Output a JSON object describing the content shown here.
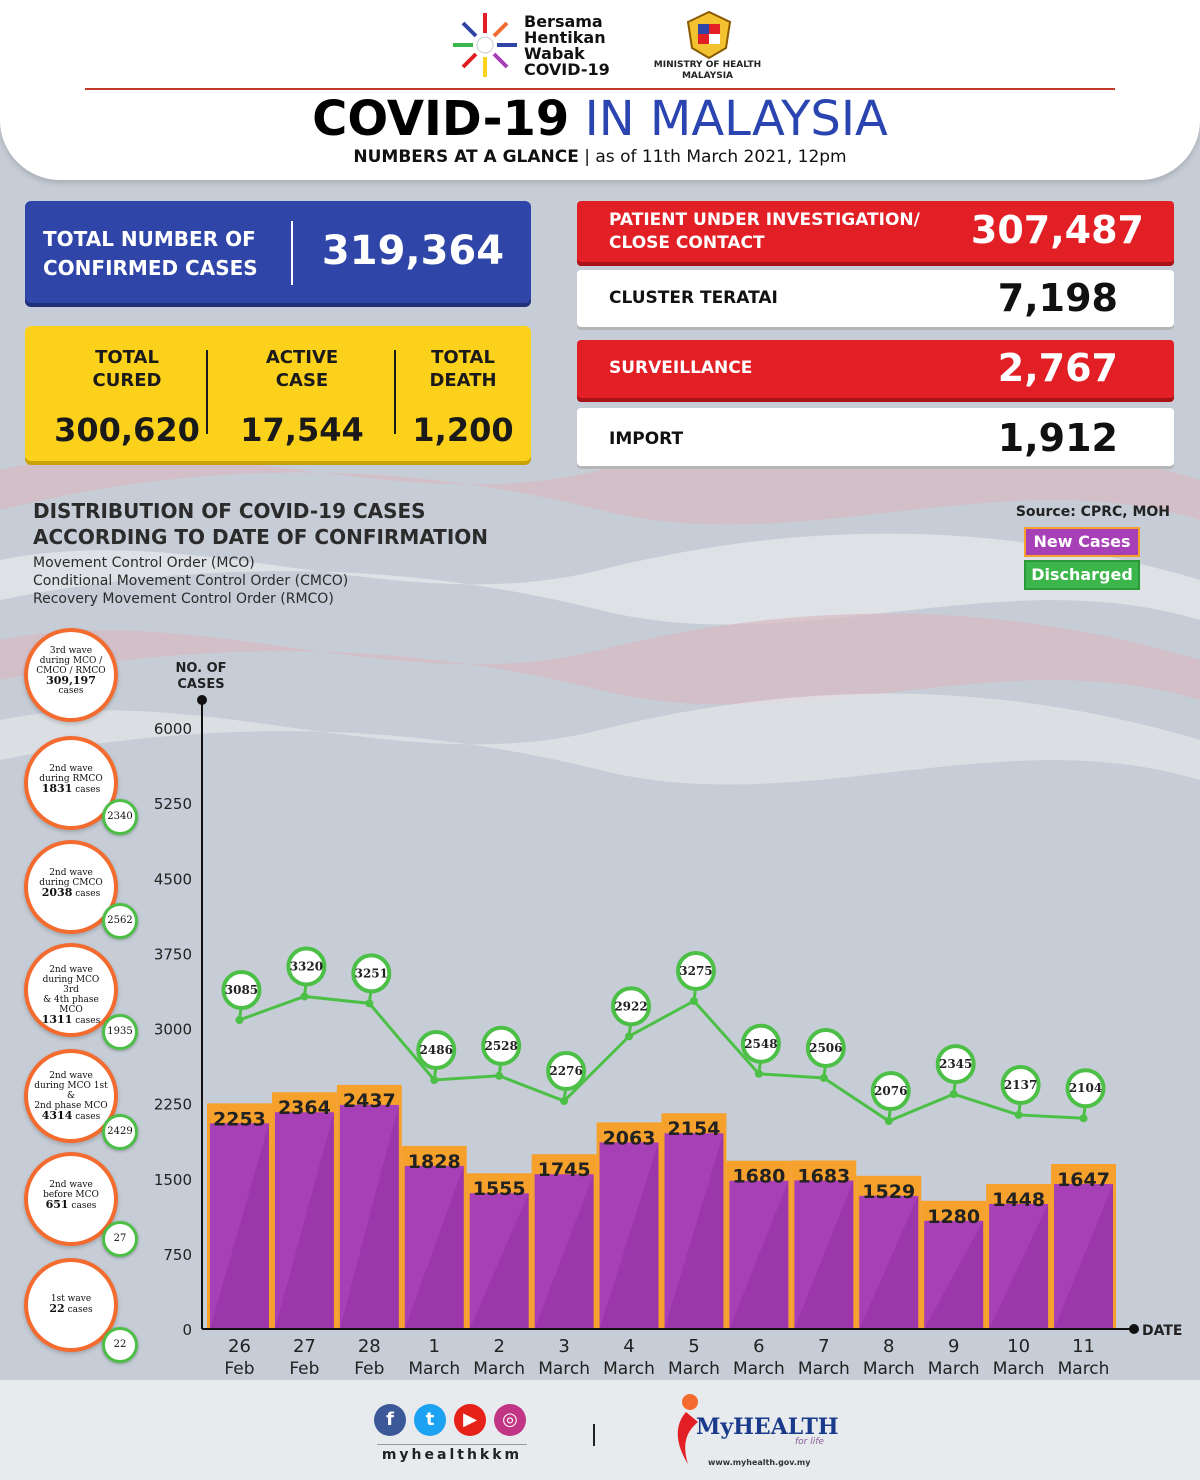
{
  "header": {
    "campaign_lines": [
      "Bersama",
      "Hentikan",
      "Wabak",
      "COVID-19"
    ],
    "ministry_line1": "MINISTRY OF HEALTH",
    "ministry_line2": "MALAYSIA",
    "title_bold": "COVID-19",
    "title_light": "IN MALAYSIA",
    "subtitle_bold": "NUMBERS AT A GLANCE",
    "subtitle_sep": "|",
    "subtitle_date": "as of 11th March 2021, 12pm"
  },
  "confirmed": {
    "label_line1": "TOTAL NUMBER OF",
    "label_line2": "CONFIRMED CASES",
    "value": "319,364"
  },
  "outcomes": [
    {
      "label_line1": "TOTAL",
      "label_line2": "CURED",
      "value": "300,620"
    },
    {
      "label_line1": "ACTIVE",
      "label_line2": "CASE",
      "value": "17,544"
    },
    {
      "label_line1": "TOTAL",
      "label_line2": "DEATH",
      "value": "1,200"
    }
  ],
  "stats": [
    {
      "label_line1": "PATIENT UNDER INVESTIGATION/",
      "label_line2": "CLOSE CONTACT",
      "value": "307,487"
    },
    {
      "label_line1": "CLUSTER TERATAI",
      "label_line2": "",
      "value": "7,198"
    },
    {
      "label_line1": "SURVEILLANCE",
      "label_line2": "",
      "value": "2,767"
    },
    {
      "label_line1": "IMPORT",
      "label_line2": "",
      "value": "1,912"
    }
  ],
  "distribution": {
    "title_line1": "DISTRIBUTION OF COVID-19 CASES",
    "title_line2": "ACCORDING TO DATE OF CONFIRMATION",
    "notes": [
      "Movement Control Order (MCO)",
      "Conditional Movement Control Order (CMCO)",
      "Recovery Movement Control Order (RMCO)"
    ]
  },
  "source": "Source: CPRC, MOH",
  "legend": {
    "new_cases": "New Cases",
    "discharged": "Discharged"
  },
  "waves": [
    {
      "line1": "3rd wave",
      "line2": "during MCO /",
      "line3": "CMCO / RMCO",
      "cases": "309,197",
      "unit": "cases",
      "discharged": ""
    },
    {
      "line1": "2nd wave",
      "line2": "during RMCO",
      "line3": "",
      "cases": "1831",
      "unit": "cases",
      "discharged": "2340"
    },
    {
      "line1": "2nd wave",
      "line2": "during CMCO",
      "line3": "",
      "cases": "2038",
      "unit": "cases",
      "discharged": "2562"
    },
    {
      "line1": "2nd wave",
      "line2": "during MCO 3rd",
      "line3": "& 4th phase MCO",
      "cases": "1311",
      "unit": "cases",
      "discharged": "1935"
    },
    {
      "line1": "2nd wave",
      "line2": "during MCO 1st &",
      "line3": "2nd phase MCO",
      "cases": "4314",
      "unit": "cases",
      "discharged": "2429"
    },
    {
      "line1": "2nd wave",
      "line2": "before MCO",
      "line3": "",
      "cases": "651",
      "unit": "cases",
      "discharged": "27"
    },
    {
      "line1": "1st wave",
      "line2": "",
      "line3": "",
      "cases": "22",
      "unit": "cases",
      "discharged": "22"
    }
  ],
  "chart_data": {
    "type": "bar",
    "ylabel_line1": "NO. OF",
    "ylabel_line2": "CASES",
    "xlabel": "DATE",
    "ylim": [
      0,
      6000
    ],
    "yticks": [
      0,
      750,
      1500,
      2250,
      3000,
      3750,
      4500,
      5250,
      6000
    ],
    "categories": [
      {
        "day": "26",
        "month": "Feb"
      },
      {
        "day": "27",
        "month": "Feb"
      },
      {
        "day": "28",
        "month": "Feb"
      },
      {
        "day": "1",
        "month": "March"
      },
      {
        "day": "2",
        "month": "March"
      },
      {
        "day": "3",
        "month": "March"
      },
      {
        "day": "4",
        "month": "March"
      },
      {
        "day": "5",
        "month": "March"
      },
      {
        "day": "6",
        "month": "March"
      },
      {
        "day": "7",
        "month": "March"
      },
      {
        "day": "8",
        "month": "March"
      },
      {
        "day": "9",
        "month": "March"
      },
      {
        "day": "10",
        "month": "March"
      },
      {
        "day": "11",
        "month": "March"
      }
    ],
    "series": [
      {
        "name": "New Cases",
        "type": "bar",
        "color": "#a73fb7",
        "values": [
          2253,
          2364,
          2437,
          1828,
          1555,
          1745,
          2063,
          2154,
          1680,
          1683,
          1529,
          1280,
          1448,
          1647
        ]
      },
      {
        "name": "Discharged",
        "type": "line",
        "color": "#4cc046",
        "values": [
          3085,
          3320,
          3251,
          2486,
          2528,
          2276,
          2922,
          3275,
          2548,
          2506,
          2076,
          2345,
          2137,
          2104
        ]
      }
    ]
  },
  "footer": {
    "social_icons": [
      "facebook-icon",
      "twitter-icon",
      "youtube-icon",
      "instagram-icon"
    ],
    "handle": "myhealthkkm",
    "separator": "|",
    "brand_prefix": "My",
    "brand_name": "HEALTH",
    "tagline": "for life",
    "url": "www.myhealth.gov.my"
  },
  "colors": {
    "blue_box": "#2f45a8",
    "yellow_box": "#fcd11b",
    "red_box": "#e31f26",
    "bar_fill": "#a73fb7",
    "bar_cap": "#f7a12d",
    "line": "#4cc046",
    "wave_ring": "#f36b2e"
  }
}
